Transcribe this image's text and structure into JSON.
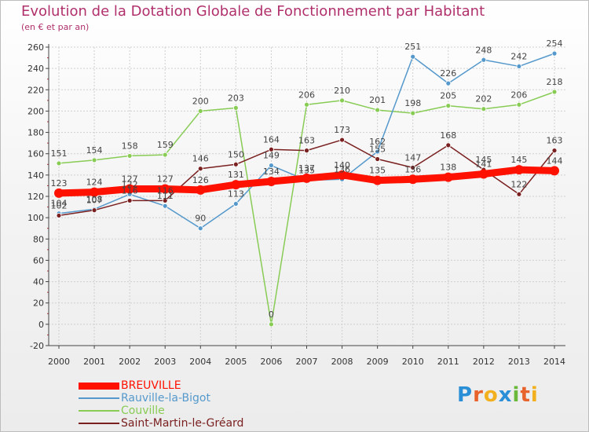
{
  "header": {
    "title": "Evolution de la Dotation Globale de Fonctionnement par Habitant",
    "subtitle": "(en € et par an)"
  },
  "logo": {
    "letters": [
      "P",
      "r",
      "o",
      "x",
      "i",
      "t",
      "i"
    ],
    "colors": [
      "#2a8fd6",
      "#e8622c",
      "#f2b01e",
      "#2a8fd6",
      "#6bb93a",
      "#e8622c",
      "#f2b01e"
    ]
  },
  "chart_data": {
    "type": "line",
    "title": "Evolution de la Dotation Globale de Fonctionnement par Habitant",
    "subtitle": "(en € et par an)",
    "xlabel": "",
    "ylabel": "",
    "x": [
      "2000",
      "2001",
      "2002",
      "2003",
      "2004",
      "2005",
      "2006",
      "2007",
      "2008",
      "2009",
      "2010",
      "2011",
      "2012",
      "2013",
      "2014"
    ],
    "ylim": [
      -20,
      260
    ],
    "yticks": [
      -20,
      0,
      20,
      40,
      60,
      80,
      100,
      120,
      140,
      160,
      180,
      200,
      220,
      240,
      260
    ],
    "grid": true,
    "legend_position": "bottom-left",
    "series": [
      {
        "name": "Couville",
        "color": "#88cc55",
        "values": [
          151,
          154,
          158,
          159,
          200,
          203,
          0,
          206,
          210,
          201,
          198,
          205,
          202,
          206,
          218
        ],
        "labels": [
          "151",
          "154",
          "158",
          "159",
          "200",
          "203",
          "0",
          "206",
          "210",
          "201",
          "198",
          "205",
          "202",
          "206",
          "218"
        ]
      },
      {
        "name": "Rauville-la-Bigot",
        "color": "#5599cc",
        "values": [
          104,
          108,
          122,
          111,
          90,
          113,
          149,
          135,
          136,
          162,
          251,
          226,
          248,
          242,
          254
        ],
        "labels": [
          "104",
          "108",
          "122",
          "111",
          "90",
          "113",
          "149",
          "135",
          "136",
          "162",
          "251",
          "226",
          "248",
          "242",
          "254"
        ]
      },
      {
        "name": "Saint-Martin-le-Gréard",
        "color": "#7a2020",
        "values": [
          102,
          107,
          116,
          116,
          146,
          150,
          164,
          163,
          173,
          155,
          147,
          168,
          145,
          122,
          163
        ],
        "labels": [
          "102",
          "107",
          "116",
          "116",
          "146",
          "150",
          "164",
          "163",
          "173",
          "155",
          "147",
          "168",
          "145",
          "122",
          "163"
        ]
      },
      {
        "name": "BREUVILLE",
        "color": "#ff1100",
        "values": [
          123,
          124,
          127,
          127,
          126,
          131,
          134,
          137,
          140,
          135,
          136,
          138,
          141,
          145,
          144
        ],
        "labels": [
          "123",
          "124",
          "127",
          "127",
          "126",
          "131",
          "134",
          "137",
          "140",
          "135",
          "136",
          "138",
          "141",
          "145",
          "144"
        ]
      }
    ],
    "legend": [
      "BREUVILLE",
      "Rauville-la-Bigot",
      "Couville",
      "Saint-Martin-le-Gréard"
    ]
  }
}
